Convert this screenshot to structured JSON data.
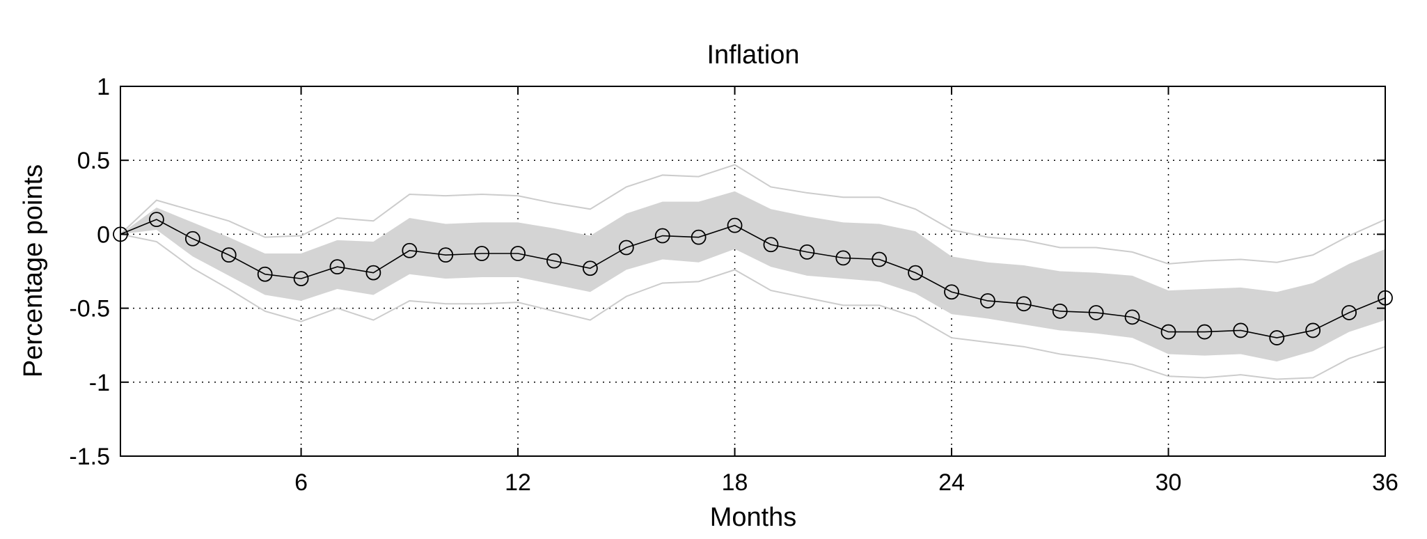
{
  "chart_data": {
    "type": "line",
    "title": "Inflation",
    "xlabel": "Months",
    "ylabel": "Percentage points",
    "xlim": [
      1,
      36
    ],
    "ylim": [
      -1.5,
      1
    ],
    "xticks": [
      6,
      12,
      18,
      24,
      30,
      36
    ],
    "yticks": [
      1,
      0.5,
      0,
      -0.5,
      -1,
      -1.5
    ],
    "ytick_labels": [
      "1",
      "0.5",
      "0",
      "-0.5",
      "-1",
      "-1.5"
    ],
    "grid": true,
    "x": [
      1,
      2,
      3,
      4,
      5,
      6,
      7,
      8,
      9,
      10,
      11,
      12,
      13,
      14,
      15,
      16,
      17,
      18,
      19,
      20,
      21,
      22,
      23,
      24,
      25,
      26,
      27,
      28,
      29,
      30,
      31,
      32,
      33,
      34,
      35,
      36
    ],
    "series": [
      {
        "role": "point-estimate",
        "marker": "circle",
        "color": "#000000",
        "values": [
          0.0,
          0.1,
          -0.03,
          -0.14,
          -0.27,
          -0.3,
          -0.22,
          -0.26,
          -0.11,
          -0.14,
          -0.13,
          -0.13,
          -0.18,
          -0.23,
          -0.09,
          -0.01,
          -0.02,
          0.06,
          -0.07,
          -0.12,
          -0.16,
          -0.17,
          -0.26,
          -0.39,
          -0.45,
          -0.47,
          -0.52,
          -0.53,
          -0.56,
          -0.66,
          -0.66,
          -0.65,
          -0.7,
          -0.65,
          -0.53,
          -0.43
        ]
      },
      {
        "role": "inner-band",
        "color": "#d4d4d4",
        "upper": [
          0.0,
          0.18,
          0.08,
          -0.02,
          -0.13,
          -0.13,
          -0.04,
          -0.05,
          0.11,
          0.07,
          0.08,
          0.08,
          0.04,
          -0.01,
          0.14,
          0.22,
          0.22,
          0.29,
          0.17,
          0.12,
          0.08,
          0.07,
          0.02,
          -0.15,
          -0.19,
          -0.21,
          -0.25,
          -0.26,
          -0.28,
          -0.38,
          -0.37,
          -0.36,
          -0.39,
          -0.33,
          -0.2,
          -0.1
        ],
        "lower": [
          0.0,
          0.03,
          -0.15,
          -0.28,
          -0.41,
          -0.45,
          -0.37,
          -0.41,
          -0.27,
          -0.3,
          -0.29,
          -0.29,
          -0.34,
          -0.39,
          -0.24,
          -0.17,
          -0.19,
          -0.1,
          -0.22,
          -0.28,
          -0.3,
          -0.32,
          -0.4,
          -0.54,
          -0.57,
          -0.61,
          -0.65,
          -0.67,
          -0.7,
          -0.81,
          -0.82,
          -0.81,
          -0.86,
          -0.79,
          -0.66,
          -0.58
        ]
      },
      {
        "role": "outer-band",
        "color": "#cccccc",
        "upper": [
          0.0,
          0.23,
          0.16,
          0.09,
          -0.02,
          -0.01,
          0.11,
          0.09,
          0.27,
          0.26,
          0.27,
          0.26,
          0.21,
          0.17,
          0.32,
          0.4,
          0.39,
          0.47,
          0.32,
          0.28,
          0.25,
          0.25,
          0.17,
          0.03,
          -0.02,
          -0.04,
          -0.09,
          -0.09,
          -0.12,
          -0.2,
          -0.18,
          -0.17,
          -0.19,
          -0.14,
          -0.01,
          0.1
        ],
        "lower": [
          0.0,
          -0.05,
          -0.23,
          -0.37,
          -0.52,
          -0.59,
          -0.5,
          -0.58,
          -0.45,
          -0.47,
          -0.47,
          -0.46,
          -0.52,
          -0.58,
          -0.42,
          -0.33,
          -0.32,
          -0.24,
          -0.38,
          -0.43,
          -0.48,
          -0.48,
          -0.56,
          -0.7,
          -0.73,
          -0.76,
          -0.81,
          -0.84,
          -0.88,
          -0.96,
          -0.97,
          -0.95,
          -0.98,
          -0.97,
          -0.84,
          -0.76
        ]
      }
    ]
  }
}
